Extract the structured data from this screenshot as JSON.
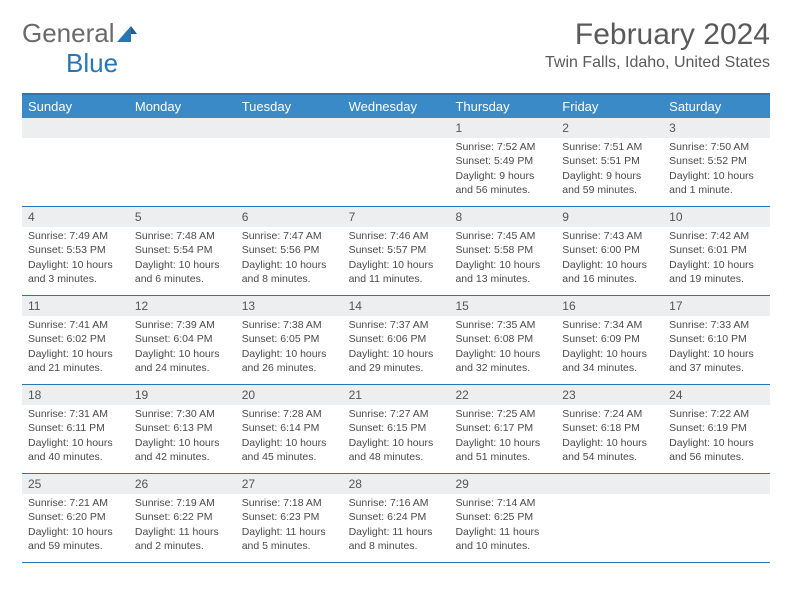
{
  "logo": {
    "part1": "General",
    "part2": "Blue"
  },
  "title": "February 2024",
  "location": "Twin Falls, Idaho, United States",
  "colors": {
    "header_bar": "#3a8ac8",
    "border": "#2a76b5",
    "daynum_bg": "#eceeef",
    "text": "#4a4a4a",
    "title_text": "#5a5a5a"
  },
  "dow": [
    "Sunday",
    "Monday",
    "Tuesday",
    "Wednesday",
    "Thursday",
    "Friday",
    "Saturday"
  ],
  "weeks": [
    [
      {
        "n": "",
        "sr": "",
        "ss": "",
        "dl": ""
      },
      {
        "n": "",
        "sr": "",
        "ss": "",
        "dl": ""
      },
      {
        "n": "",
        "sr": "",
        "ss": "",
        "dl": ""
      },
      {
        "n": "",
        "sr": "",
        "ss": "",
        "dl": ""
      },
      {
        "n": "1",
        "sr": "Sunrise: 7:52 AM",
        "ss": "Sunset: 5:49 PM",
        "dl": "Daylight: 9 hours and 56 minutes."
      },
      {
        "n": "2",
        "sr": "Sunrise: 7:51 AM",
        "ss": "Sunset: 5:51 PM",
        "dl": "Daylight: 9 hours and 59 minutes."
      },
      {
        "n": "3",
        "sr": "Sunrise: 7:50 AM",
        "ss": "Sunset: 5:52 PM",
        "dl": "Daylight: 10 hours and 1 minute."
      }
    ],
    [
      {
        "n": "4",
        "sr": "Sunrise: 7:49 AM",
        "ss": "Sunset: 5:53 PM",
        "dl": "Daylight: 10 hours and 3 minutes."
      },
      {
        "n": "5",
        "sr": "Sunrise: 7:48 AM",
        "ss": "Sunset: 5:54 PM",
        "dl": "Daylight: 10 hours and 6 minutes."
      },
      {
        "n": "6",
        "sr": "Sunrise: 7:47 AM",
        "ss": "Sunset: 5:56 PM",
        "dl": "Daylight: 10 hours and 8 minutes."
      },
      {
        "n": "7",
        "sr": "Sunrise: 7:46 AM",
        "ss": "Sunset: 5:57 PM",
        "dl": "Daylight: 10 hours and 11 minutes."
      },
      {
        "n": "8",
        "sr": "Sunrise: 7:45 AM",
        "ss": "Sunset: 5:58 PM",
        "dl": "Daylight: 10 hours and 13 minutes."
      },
      {
        "n": "9",
        "sr": "Sunrise: 7:43 AM",
        "ss": "Sunset: 6:00 PM",
        "dl": "Daylight: 10 hours and 16 minutes."
      },
      {
        "n": "10",
        "sr": "Sunrise: 7:42 AM",
        "ss": "Sunset: 6:01 PM",
        "dl": "Daylight: 10 hours and 19 minutes."
      }
    ],
    [
      {
        "n": "11",
        "sr": "Sunrise: 7:41 AM",
        "ss": "Sunset: 6:02 PM",
        "dl": "Daylight: 10 hours and 21 minutes."
      },
      {
        "n": "12",
        "sr": "Sunrise: 7:39 AM",
        "ss": "Sunset: 6:04 PM",
        "dl": "Daylight: 10 hours and 24 minutes."
      },
      {
        "n": "13",
        "sr": "Sunrise: 7:38 AM",
        "ss": "Sunset: 6:05 PM",
        "dl": "Daylight: 10 hours and 26 minutes."
      },
      {
        "n": "14",
        "sr": "Sunrise: 7:37 AM",
        "ss": "Sunset: 6:06 PM",
        "dl": "Daylight: 10 hours and 29 minutes."
      },
      {
        "n": "15",
        "sr": "Sunrise: 7:35 AM",
        "ss": "Sunset: 6:08 PM",
        "dl": "Daylight: 10 hours and 32 minutes."
      },
      {
        "n": "16",
        "sr": "Sunrise: 7:34 AM",
        "ss": "Sunset: 6:09 PM",
        "dl": "Daylight: 10 hours and 34 minutes."
      },
      {
        "n": "17",
        "sr": "Sunrise: 7:33 AM",
        "ss": "Sunset: 6:10 PM",
        "dl": "Daylight: 10 hours and 37 minutes."
      }
    ],
    [
      {
        "n": "18",
        "sr": "Sunrise: 7:31 AM",
        "ss": "Sunset: 6:11 PM",
        "dl": "Daylight: 10 hours and 40 minutes."
      },
      {
        "n": "19",
        "sr": "Sunrise: 7:30 AM",
        "ss": "Sunset: 6:13 PM",
        "dl": "Daylight: 10 hours and 42 minutes."
      },
      {
        "n": "20",
        "sr": "Sunrise: 7:28 AM",
        "ss": "Sunset: 6:14 PM",
        "dl": "Daylight: 10 hours and 45 minutes."
      },
      {
        "n": "21",
        "sr": "Sunrise: 7:27 AM",
        "ss": "Sunset: 6:15 PM",
        "dl": "Daylight: 10 hours and 48 minutes."
      },
      {
        "n": "22",
        "sr": "Sunrise: 7:25 AM",
        "ss": "Sunset: 6:17 PM",
        "dl": "Daylight: 10 hours and 51 minutes."
      },
      {
        "n": "23",
        "sr": "Sunrise: 7:24 AM",
        "ss": "Sunset: 6:18 PM",
        "dl": "Daylight: 10 hours and 54 minutes."
      },
      {
        "n": "24",
        "sr": "Sunrise: 7:22 AM",
        "ss": "Sunset: 6:19 PM",
        "dl": "Daylight: 10 hours and 56 minutes."
      }
    ],
    [
      {
        "n": "25",
        "sr": "Sunrise: 7:21 AM",
        "ss": "Sunset: 6:20 PM",
        "dl": "Daylight: 10 hours and 59 minutes."
      },
      {
        "n": "26",
        "sr": "Sunrise: 7:19 AM",
        "ss": "Sunset: 6:22 PM",
        "dl": "Daylight: 11 hours and 2 minutes."
      },
      {
        "n": "27",
        "sr": "Sunrise: 7:18 AM",
        "ss": "Sunset: 6:23 PM",
        "dl": "Daylight: 11 hours and 5 minutes."
      },
      {
        "n": "28",
        "sr": "Sunrise: 7:16 AM",
        "ss": "Sunset: 6:24 PM",
        "dl": "Daylight: 11 hours and 8 minutes."
      },
      {
        "n": "29",
        "sr": "Sunrise: 7:14 AM",
        "ss": "Sunset: 6:25 PM",
        "dl": "Daylight: 11 hours and 10 minutes."
      },
      {
        "n": "",
        "sr": "",
        "ss": "",
        "dl": ""
      },
      {
        "n": "",
        "sr": "",
        "ss": "",
        "dl": ""
      }
    ]
  ]
}
